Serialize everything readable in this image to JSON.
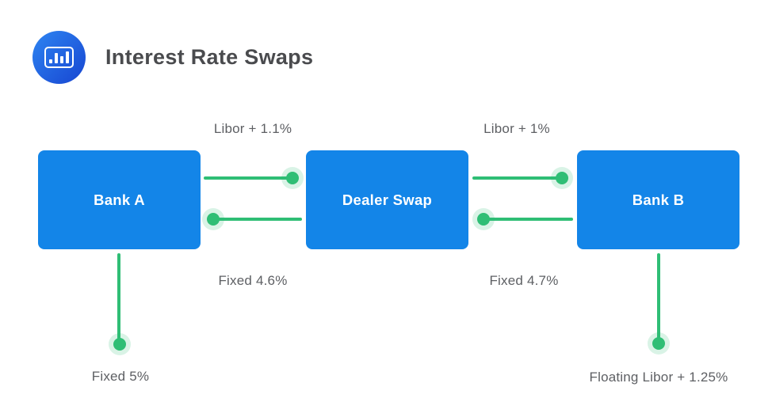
{
  "header": {
    "title": "Interest Rate Swaps",
    "icon": "bar-chart-icon"
  },
  "colors": {
    "node_fill": "#1385E8",
    "connector_green": "#2FBE75",
    "connector_halo": "rgba(47,190,117,0.18)",
    "title_text": "#4A4B4E",
    "label_text": "#5D5F63",
    "icon_gradient_start": "#2E85F2",
    "icon_gradient_end": "#1745D1"
  },
  "diagram": {
    "nodes": [
      {
        "id": "bank-a",
        "label": "Bank A"
      },
      {
        "id": "dealer-swap",
        "label": "Dealer Swap"
      },
      {
        "id": "bank-b",
        "label": "Bank B"
      }
    ],
    "edges": [
      {
        "id": "bank-a-to-dealer-top",
        "label": "Libor + 1.1%"
      },
      {
        "id": "dealer-to-bank-a-bottom",
        "label": "Fixed 4.6%"
      },
      {
        "id": "dealer-to-bank-b-top",
        "label": "Libor + 1%"
      },
      {
        "id": "bank-b-to-dealer-bottom",
        "label": "Fixed 4.7%"
      },
      {
        "id": "bank-a-pays-down",
        "label": "Fixed 5%"
      },
      {
        "id": "bank-b-pays-down",
        "label": "Floating Libor + 1.25%"
      }
    ]
  }
}
